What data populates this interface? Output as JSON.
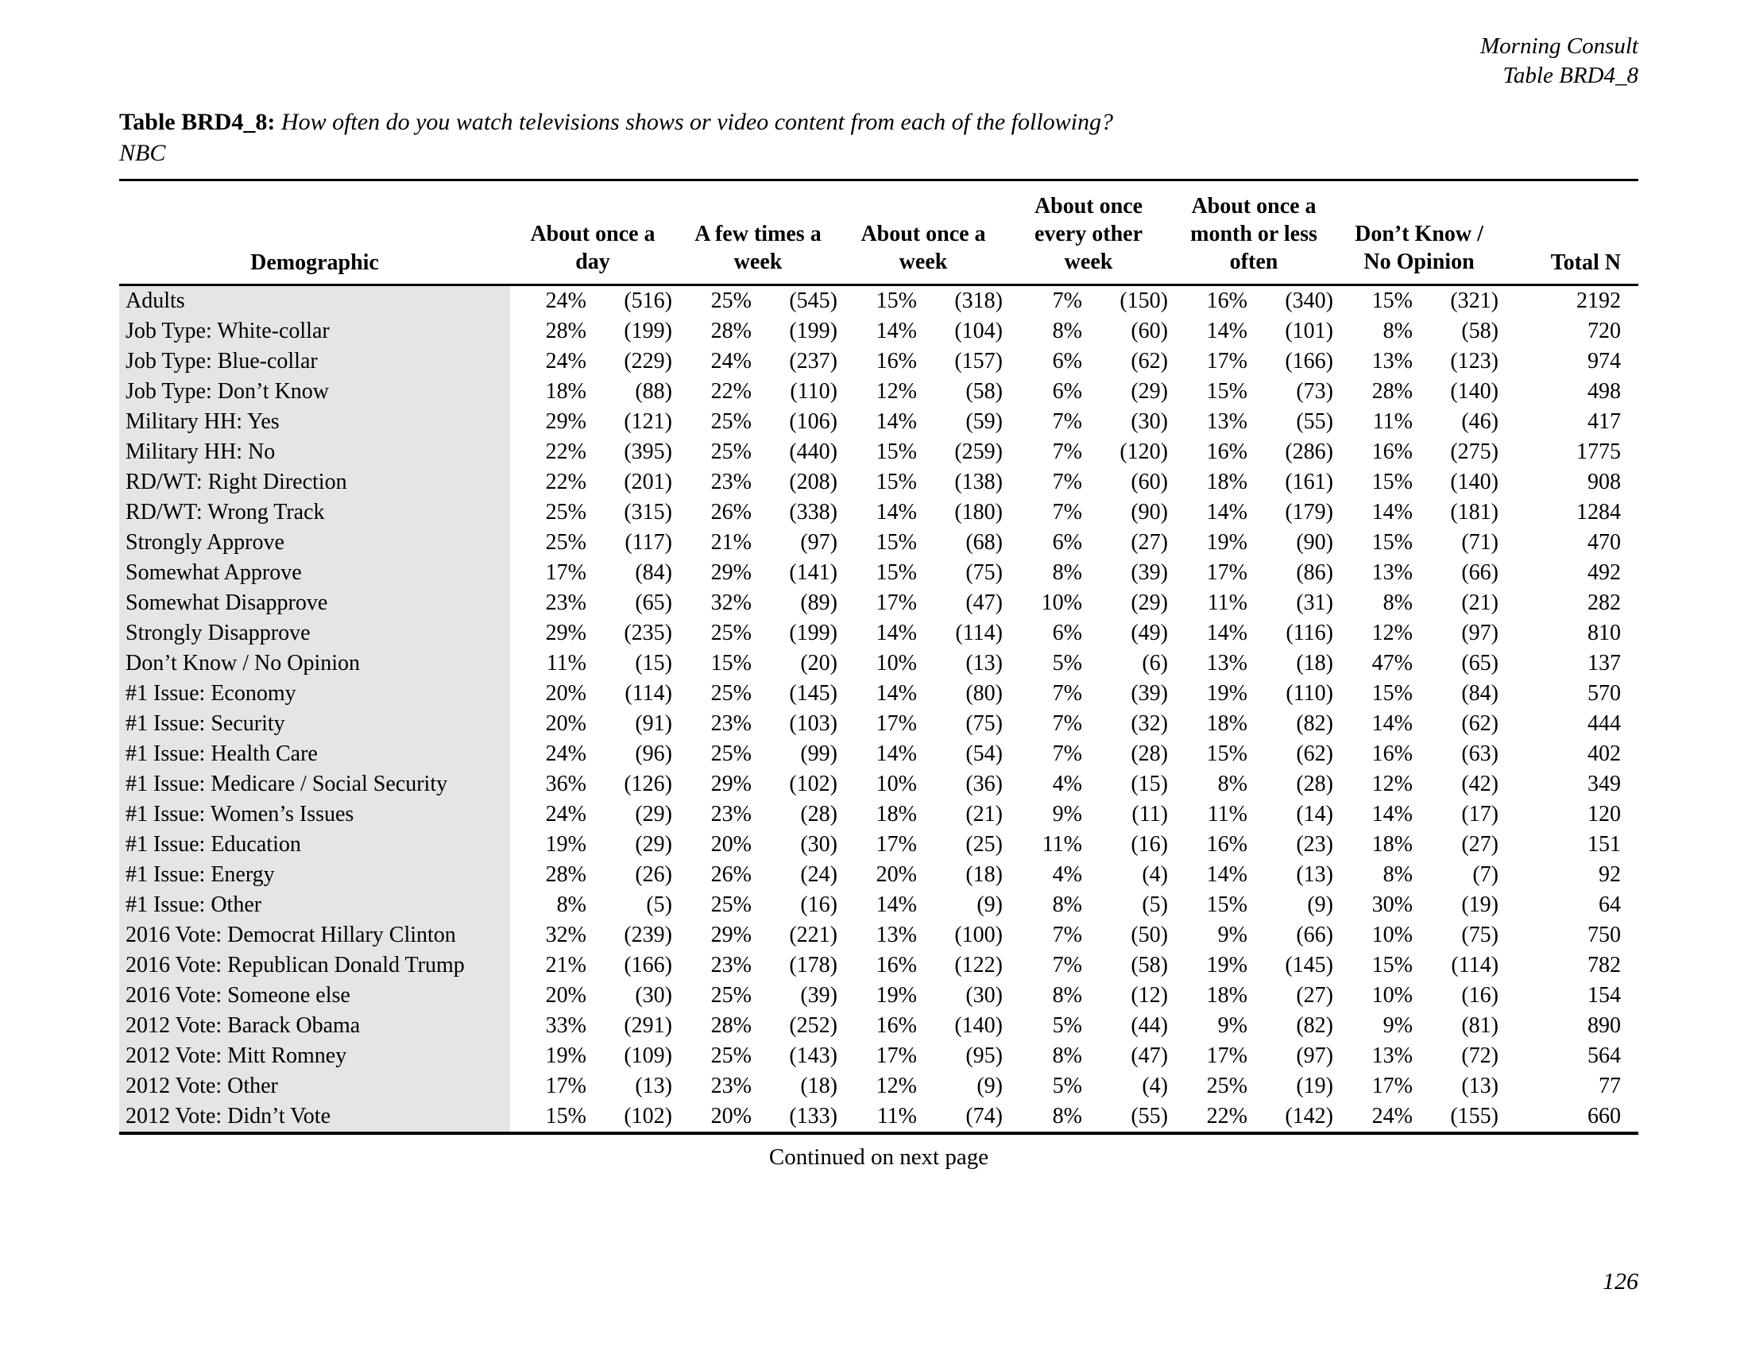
{
  "page_header": {
    "brand": "Morning Consult",
    "table_ref": "Table BRD4_8"
  },
  "title": {
    "label": "Table BRD4_8:",
    "question": "How often do you watch televisions shows or video content from each of the following?",
    "subject": "NBC"
  },
  "table": {
    "headers": {
      "demographic": "Demographic",
      "groups": [
        {
          "lines": [
            "About once a",
            "day"
          ]
        },
        {
          "lines": [
            "A few times a",
            "week"
          ]
        },
        {
          "lines": [
            "About once a",
            "week"
          ]
        },
        {
          "lines": [
            "About once",
            "every other",
            "week"
          ]
        },
        {
          "lines": [
            "About once a",
            "month or less",
            "often"
          ]
        },
        {
          "lines": [
            "Don’t Know /",
            "No Opinion"
          ]
        }
      ],
      "total": "Total N"
    },
    "rows": [
      {
        "demographic": "Adults",
        "cells": [
          "24%",
          "(516)",
          "25%",
          "(545)",
          "15%",
          "(318)",
          "7%",
          "(150)",
          "16%",
          "(340)",
          "15%",
          "(321)"
        ],
        "total": "2192"
      },
      {
        "demographic": "Job Type: White-collar",
        "cells": [
          "28%",
          "(199)",
          "28%",
          "(199)",
          "14%",
          "(104)",
          "8%",
          "(60)",
          "14%",
          "(101)",
          "8%",
          "(58)"
        ],
        "total": "720"
      },
      {
        "demographic": "Job Type: Blue-collar",
        "cells": [
          "24%",
          "(229)",
          "24%",
          "(237)",
          "16%",
          "(157)",
          "6%",
          "(62)",
          "17%",
          "(166)",
          "13%",
          "(123)"
        ],
        "total": "974"
      },
      {
        "demographic": "Job Type: Don’t Know",
        "cells": [
          "18%",
          "(88)",
          "22%",
          "(110)",
          "12%",
          "(58)",
          "6%",
          "(29)",
          "15%",
          "(73)",
          "28%",
          "(140)"
        ],
        "total": "498"
      },
      {
        "demographic": "Military HH: Yes",
        "cells": [
          "29%",
          "(121)",
          "25%",
          "(106)",
          "14%",
          "(59)",
          "7%",
          "(30)",
          "13%",
          "(55)",
          "11%",
          "(46)"
        ],
        "total": "417"
      },
      {
        "demographic": "Military HH: No",
        "cells": [
          "22%",
          "(395)",
          "25%",
          "(440)",
          "15%",
          "(259)",
          "7%",
          "(120)",
          "16%",
          "(286)",
          "16%",
          "(275)"
        ],
        "total": "1775"
      },
      {
        "demographic": "RD/WT: Right Direction",
        "cells": [
          "22%",
          "(201)",
          "23%",
          "(208)",
          "15%",
          "(138)",
          "7%",
          "(60)",
          "18%",
          "(161)",
          "15%",
          "(140)"
        ],
        "total": "908"
      },
      {
        "demographic": "RD/WT: Wrong Track",
        "cells": [
          "25%",
          "(315)",
          "26%",
          "(338)",
          "14%",
          "(180)",
          "7%",
          "(90)",
          "14%",
          "(179)",
          "14%",
          "(181)"
        ],
        "total": "1284"
      },
      {
        "demographic": "Strongly Approve",
        "cells": [
          "25%",
          "(117)",
          "21%",
          "(97)",
          "15%",
          "(68)",
          "6%",
          "(27)",
          "19%",
          "(90)",
          "15%",
          "(71)"
        ],
        "total": "470"
      },
      {
        "demographic": "Somewhat Approve",
        "cells": [
          "17%",
          "(84)",
          "29%",
          "(141)",
          "15%",
          "(75)",
          "8%",
          "(39)",
          "17%",
          "(86)",
          "13%",
          "(66)"
        ],
        "total": "492"
      },
      {
        "demographic": "Somewhat Disapprove",
        "cells": [
          "23%",
          "(65)",
          "32%",
          "(89)",
          "17%",
          "(47)",
          "10%",
          "(29)",
          "11%",
          "(31)",
          "8%",
          "(21)"
        ],
        "total": "282"
      },
      {
        "demographic": "Strongly Disapprove",
        "cells": [
          "29%",
          "(235)",
          "25%",
          "(199)",
          "14%",
          "(114)",
          "6%",
          "(49)",
          "14%",
          "(116)",
          "12%",
          "(97)"
        ],
        "total": "810"
      },
      {
        "demographic": "Don’t Know / No Opinion",
        "cells": [
          "11%",
          "(15)",
          "15%",
          "(20)",
          "10%",
          "(13)",
          "5%",
          "(6)",
          "13%",
          "(18)",
          "47%",
          "(65)"
        ],
        "total": "137"
      },
      {
        "demographic": "#1 Issue: Economy",
        "cells": [
          "20%",
          "(114)",
          "25%",
          "(145)",
          "14%",
          "(80)",
          "7%",
          "(39)",
          "19%",
          "(110)",
          "15%",
          "(84)"
        ],
        "total": "570"
      },
      {
        "demographic": "#1 Issue: Security",
        "cells": [
          "20%",
          "(91)",
          "23%",
          "(103)",
          "17%",
          "(75)",
          "7%",
          "(32)",
          "18%",
          "(82)",
          "14%",
          "(62)"
        ],
        "total": "444"
      },
      {
        "demographic": "#1 Issue: Health Care",
        "cells": [
          "24%",
          "(96)",
          "25%",
          "(99)",
          "14%",
          "(54)",
          "7%",
          "(28)",
          "15%",
          "(62)",
          "16%",
          "(63)"
        ],
        "total": "402"
      },
      {
        "demographic": "#1 Issue: Medicare / Social Security",
        "cells": [
          "36%",
          "(126)",
          "29%",
          "(102)",
          "10%",
          "(36)",
          "4%",
          "(15)",
          "8%",
          "(28)",
          "12%",
          "(42)"
        ],
        "total": "349"
      },
      {
        "demographic": "#1 Issue: Women’s Issues",
        "cells": [
          "24%",
          "(29)",
          "23%",
          "(28)",
          "18%",
          "(21)",
          "9%",
          "(11)",
          "11%",
          "(14)",
          "14%",
          "(17)"
        ],
        "total": "120"
      },
      {
        "demographic": "#1 Issue: Education",
        "cells": [
          "19%",
          "(29)",
          "20%",
          "(30)",
          "17%",
          "(25)",
          "11%",
          "(16)",
          "16%",
          "(23)",
          "18%",
          "(27)"
        ],
        "total": "151"
      },
      {
        "demographic": "#1 Issue: Energy",
        "cells": [
          "28%",
          "(26)",
          "26%",
          "(24)",
          "20%",
          "(18)",
          "4%",
          "(4)",
          "14%",
          "(13)",
          "8%",
          "(7)"
        ],
        "total": "92"
      },
      {
        "demographic": "#1 Issue: Other",
        "cells": [
          "8%",
          "(5)",
          "25%",
          "(16)",
          "14%",
          "(9)",
          "8%",
          "(5)",
          "15%",
          "(9)",
          "30%",
          "(19)"
        ],
        "total": "64"
      },
      {
        "demographic": "2016 Vote: Democrat Hillary Clinton",
        "cells": [
          "32%",
          "(239)",
          "29%",
          "(221)",
          "13%",
          "(100)",
          "7%",
          "(50)",
          "9%",
          "(66)",
          "10%",
          "(75)"
        ],
        "total": "750"
      },
      {
        "demographic": "2016 Vote: Republican Donald Trump",
        "cells": [
          "21%",
          "(166)",
          "23%",
          "(178)",
          "16%",
          "(122)",
          "7%",
          "(58)",
          "19%",
          "(145)",
          "15%",
          "(114)"
        ],
        "total": "782"
      },
      {
        "demographic": "2016 Vote: Someone else",
        "cells": [
          "20%",
          "(30)",
          "25%",
          "(39)",
          "19%",
          "(30)",
          "8%",
          "(12)",
          "18%",
          "(27)",
          "10%",
          "(16)"
        ],
        "total": "154"
      },
      {
        "demographic": "2012 Vote: Barack Obama",
        "cells": [
          "33%",
          "(291)",
          "28%",
          "(252)",
          "16%",
          "(140)",
          "5%",
          "(44)",
          "9%",
          "(82)",
          "9%",
          "(81)"
        ],
        "total": "890"
      },
      {
        "demographic": "2012 Vote: Mitt Romney",
        "cells": [
          "19%",
          "(109)",
          "25%",
          "(143)",
          "17%",
          "(95)",
          "8%",
          "(47)",
          "17%",
          "(97)",
          "13%",
          "(72)"
        ],
        "total": "564"
      },
      {
        "demographic": "2012 Vote: Other",
        "cells": [
          "17%",
          "(13)",
          "23%",
          "(18)",
          "12%",
          "(9)",
          "5%",
          "(4)",
          "25%",
          "(19)",
          "17%",
          "(13)"
        ],
        "total": "77"
      },
      {
        "demographic": "2012 Vote: Didn’t Vote",
        "cells": [
          "15%",
          "(102)",
          "20%",
          "(133)",
          "11%",
          "(74)",
          "8%",
          "(55)",
          "22%",
          "(142)",
          "24%",
          "(155)"
        ],
        "total": "660"
      }
    ]
  },
  "footer": {
    "continued": "Continued on next page",
    "page_number": "126"
  },
  "colors": {
    "row_label_bg": "#e5e5e5",
    "text": "#000000",
    "rule": "#000000"
  }
}
